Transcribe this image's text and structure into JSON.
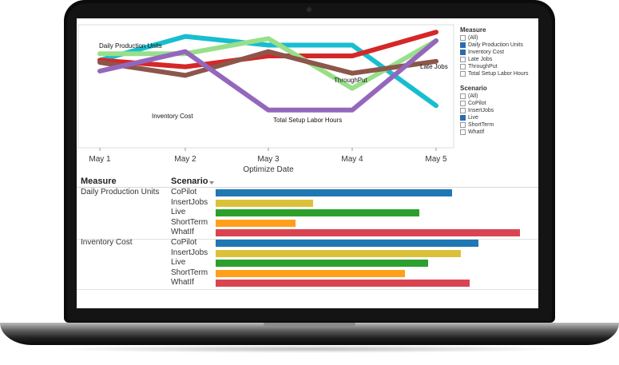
{
  "chart_data": [
    {
      "type": "line",
      "x": [
        "May 1",
        "May 2",
        "May 3",
        "May 4",
        "May 5"
      ],
      "xlabel": "Optimize Date",
      "series": [
        {
          "name": "Daily Production Units",
          "color": "#17becf",
          "values": [
            0.72,
            0.94,
            0.86,
            0.86,
            0.3
          ]
        },
        {
          "name": "Inventory Cost",
          "color": "#d62728",
          "values": [
            0.72,
            0.66,
            0.76,
            0.76,
            0.98
          ]
        },
        {
          "name": "Late Jobs",
          "color": "#98df8a",
          "values": [
            0.78,
            0.78,
            0.92,
            0.46,
            0.9
          ]
        },
        {
          "name": "ThroughPut",
          "color": "#8c564b",
          "values": [
            0.7,
            0.58,
            0.8,
            0.6,
            0.71
          ]
        },
        {
          "name": "Total Setup Labor Hours",
          "color": "#9467bd",
          "values": [
            0.62,
            0.8,
            0.26,
            0.26,
            0.9
          ]
        }
      ],
      "annotations": [
        "Daily Production Units",
        "ThroughPut",
        "Late Jobs",
        "Inventory Cost",
        "Total Setup Labor Hours"
      ]
    },
    {
      "type": "bar",
      "headers": {
        "measure": "Measure",
        "scenario": "Scenario"
      },
      "groups": [
        {
          "measure": "Daily Production Units",
          "rows": [
            {
              "scenario": "CoPilot",
              "value": 0.8,
              "color": "#1f77b4"
            },
            {
              "scenario": "InsertJobs",
              "value": 0.33,
              "color": "#dbc13a"
            },
            {
              "scenario": "Live",
              "value": 0.69,
              "color": "#2ca02c"
            },
            {
              "scenario": "ShortTerm",
              "value": 0.27,
              "color": "#ff9f1c"
            },
            {
              "scenario": "WhatIf",
              "value": 1.03,
              "color": "#d94452"
            }
          ]
        },
        {
          "measure": "Inventory Cost",
          "rows": [
            {
              "scenario": "CoPilot",
              "value": 0.89,
              "color": "#1f77b4"
            },
            {
              "scenario": "InsertJobs",
              "value": 0.83,
              "color": "#dbc13a"
            },
            {
              "scenario": "Live",
              "value": 0.72,
              "color": "#2ca02c"
            },
            {
              "scenario": "ShortTerm",
              "value": 0.64,
              "color": "#ff9f1c"
            },
            {
              "scenario": "WhatIf",
              "value": 0.86,
              "color": "#d94452"
            }
          ]
        }
      ]
    }
  ],
  "filters": {
    "measure_title": "Measure",
    "measure_items": [
      {
        "label": "(All)",
        "checked": false
      },
      {
        "label": "Daily Production Units",
        "checked": true
      },
      {
        "label": "Inventory Cost",
        "checked": true
      },
      {
        "label": "Late Jobs",
        "checked": false
      },
      {
        "label": "ThroughPut",
        "checked": false
      },
      {
        "label": "Total Setup Labor Hours",
        "checked": false
      }
    ],
    "scenario_title": "Scenario",
    "scenario_items": [
      {
        "label": "(All)",
        "checked": false
      },
      {
        "label": "CoPilot",
        "checked": false
      },
      {
        "label": "InsertJobs",
        "checked": false
      },
      {
        "label": "Live",
        "checked": true
      },
      {
        "label": "ShortTerm",
        "checked": false
      },
      {
        "label": "WhatIf",
        "checked": false
      }
    ]
  }
}
